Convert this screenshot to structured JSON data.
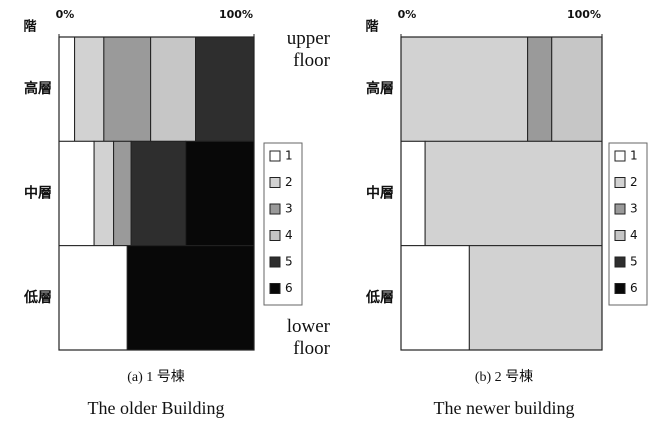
{
  "chart_data": [
    {
      "type": "bar",
      "orientation": "horizontal",
      "stacked": true,
      "y_label": "階",
      "caption": "(a) 1 号棟",
      "subtitle": "The older Building",
      "annotations": [
        "upper floor",
        "lower floor"
      ],
      "categories": [
        "高層",
        "中層",
        "低層"
      ],
      "xlim": [
        0,
        100
      ],
      "xticks": [
        {
          "value": 0,
          "label": "0%"
        },
        {
          "value": 100,
          "label": "100%"
        }
      ],
      "series": [
        {
          "name": "1",
          "color": "#ffffff",
          "values": [
            8,
            18,
            35
          ]
        },
        {
          "name": "2",
          "color": "#d2d2d2",
          "values": [
            15,
            10,
            0
          ]
        },
        {
          "name": "3",
          "color": "#9a9a9a",
          "values": [
            24,
            9,
            0
          ]
        },
        {
          "name": "4",
          "color": "#c6c6c6",
          "values": [
            23,
            0,
            0
          ]
        },
        {
          "name": "5",
          "color": "#2e2e2e",
          "values": [
            30,
            28,
            0
          ]
        },
        {
          "name": "6",
          "color": "#080808",
          "values": [
            0,
            35,
            65
          ]
        }
      ]
    },
    {
      "type": "bar",
      "orientation": "horizontal",
      "stacked": true,
      "y_label": "階",
      "caption": "(b) 2 号棟",
      "subtitle": "The newer building",
      "categories": [
        "高層",
        "中層",
        "低層"
      ],
      "xlim": [
        0,
        100
      ],
      "xticks": [
        {
          "value": 0,
          "label": "0%"
        },
        {
          "value": 100,
          "label": "100%"
        }
      ],
      "series": [
        {
          "name": "1",
          "color": "#ffffff",
          "values": [
            0,
            12,
            34
          ]
        },
        {
          "name": "2",
          "color": "#d2d2d2",
          "values": [
            63,
            88,
            66
          ]
        },
        {
          "name": "3",
          "color": "#9a9a9a",
          "values": [
            12,
            0,
            0
          ]
        },
        {
          "name": "4",
          "color": "#c6c6c6",
          "values": [
            25,
            0,
            0
          ]
        },
        {
          "name": "5",
          "color": "#2e2e2e",
          "values": [
            0,
            0,
            0
          ]
        },
        {
          "name": "6",
          "color": "#080808",
          "values": [
            0,
            0,
            0
          ]
        }
      ]
    }
  ]
}
